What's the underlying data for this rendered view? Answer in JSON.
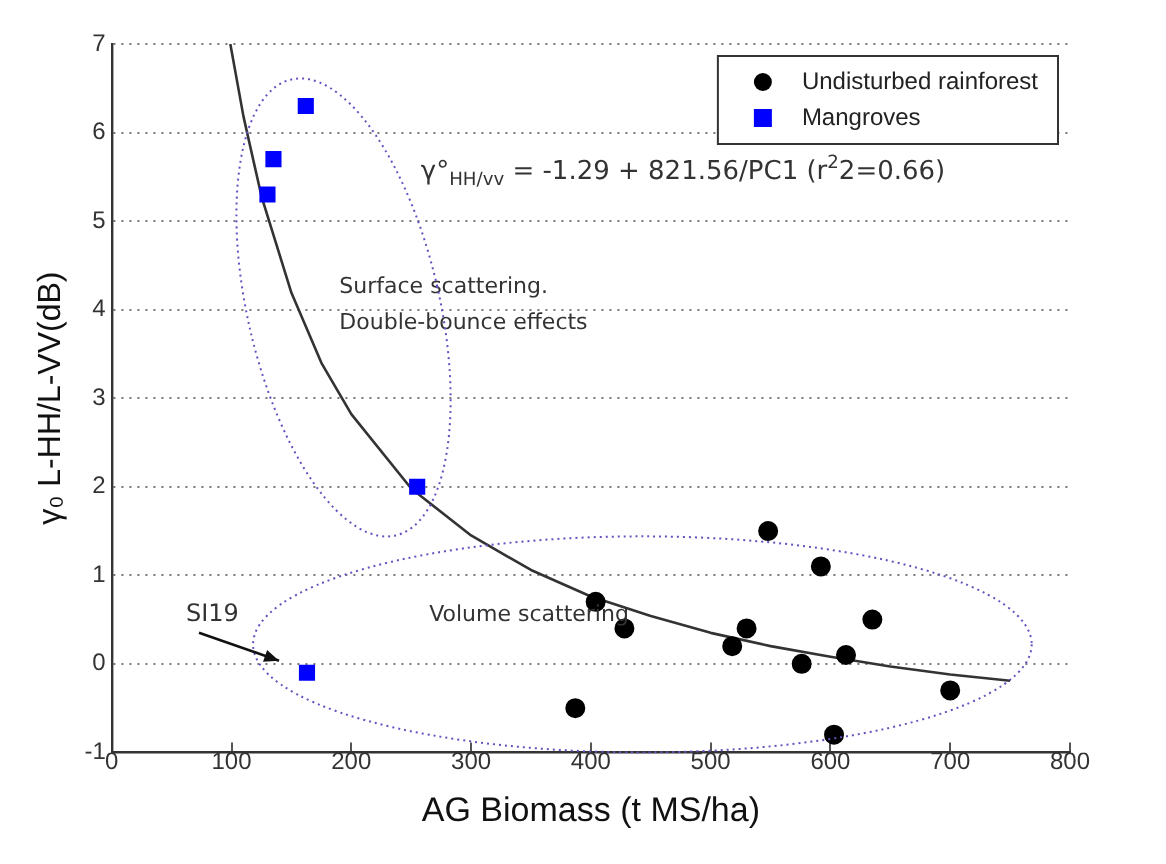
{
  "chart_data": {
    "type": "scatter",
    "xlabel": "AG Biomass (t MS/ha)",
    "ylabel": "γ₀ L-HH/L-VV(dB)",
    "xlim": [
      0,
      800
    ],
    "xticks": [
      0,
      100,
      200,
      300,
      400,
      500,
      600,
      700,
      800
    ],
    "ylim": [
      -1,
      7
    ],
    "yticks": [
      -1,
      0,
      1,
      2,
      3,
      4,
      5,
      6,
      7
    ],
    "grid": "y",
    "legend": "top right",
    "series": [
      {
        "name": "Undisturbed rainforest",
        "color": "#000000",
        "marker": "circle",
        "x": [
          404,
          428,
          387,
          548,
          592,
          635,
          518,
          530,
          576,
          613,
          603,
          700
        ],
        "values": [
          0.7,
          0.4,
          -0.5,
          1.5,
          1.1,
          0.5,
          0.2,
          0.4,
          0.0,
          0.1,
          -0.8,
          -0.3
        ]
      },
      {
        "name": "Mangroves",
        "color": "#0000ff",
        "marker": "square",
        "x": [
          162,
          135,
          130,
          255,
          163
        ],
        "values": [
          6.3,
          5.7,
          5.3,
          2.0,
          -0.1
        ]
      },
      {
        "type": "line",
        "color": "#333333",
        "marker": "none",
        "line_style": "solid",
        "x": [
          99,
          110,
          125,
          150,
          175,
          200,
          250,
          300,
          350,
          400,
          450,
          500,
          550,
          600,
          650,
          700,
          750
        ],
        "values": [
          7.0,
          6.18,
          5.28,
          4.19,
          3.4,
          2.82,
          1.98,
          1.45,
          1.06,
          0.76,
          0.54,
          0.35,
          0.2,
          0.08,
          -0.03,
          -0.12,
          -0.19
        ]
      }
    ],
    "annotations": [
      "γ°$_{HH/vv}$ = -1.29 + 821.56/PC1 (r$^{2}$2=0.66)",
      "Surface scattering.",
      "Double-bounce effects",
      "Volume scattering",
      "SI19"
    ]
  }
}
